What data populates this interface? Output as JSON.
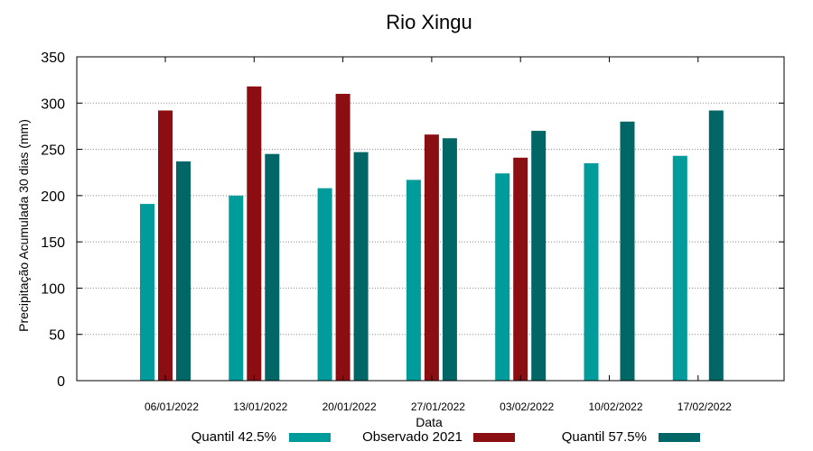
{
  "chart_data": {
    "type": "bar",
    "title": "Rio Xingu",
    "xlabel": "Data",
    "ylabel": "Precipitação Acumulada 30 dias (mm)",
    "ylim": [
      0,
      350
    ],
    "yticks": [
      0,
      50,
      100,
      150,
      200,
      250,
      300,
      350
    ],
    "grid": true,
    "legend_position": "bottom",
    "categories": [
      "06/01/2022",
      "13/01/2022",
      "20/01/2022",
      "27/01/2022",
      "03/02/2022",
      "10/02/2022",
      "17/02/2022"
    ],
    "series": [
      {
        "name": "Quantil 42.5%",
        "color": "#009b9b",
        "values": [
          191,
          200,
          208,
          217,
          224,
          235,
          243
        ]
      },
      {
        "name": "Observado 2021",
        "color": "#8b0f12",
        "values": [
          292,
          318,
          310,
          266,
          241,
          null,
          null
        ]
      },
      {
        "name": "Quantil 57.5%",
        "color": "#006666",
        "values": [
          237,
          245,
          247,
          262,
          270,
          280,
          292
        ]
      }
    ]
  }
}
